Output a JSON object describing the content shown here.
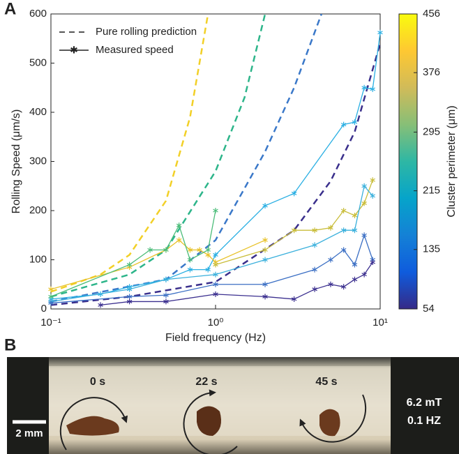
{
  "panel_labels": [
    "A",
    "B"
  ],
  "chart_data": {
    "type": "line",
    "x_label": "Field frequency (Hz)",
    "y_label": "Rolling Speed (μm/s)",
    "xscale": "log",
    "xlim": [
      0.1,
      10
    ],
    "xticks": [
      {
        "value": 0.1,
        "label": "10⁻¹"
      },
      {
        "value": 1,
        "label": "10⁰"
      },
      {
        "value": 10,
        "label": "10¹"
      }
    ],
    "ylim": [
      0,
      600
    ],
    "yticks": [
      0,
      100,
      200,
      300,
      400,
      500,
      600
    ],
    "legend": [
      "Pure rolling prediction",
      "Measured speed"
    ],
    "legend_position": "upper left",
    "series": [
      {
        "style": "dashed",
        "color": "#f2d027",
        "x": [
          0.1,
          0.2,
          0.3,
          0.5,
          0.7,
          0.9
        ],
        "values": [
          35,
          70,
          110,
          220,
          390,
          600
        ]
      },
      {
        "style": "dashed",
        "color": "#2db58a",
        "x": [
          0.1,
          0.3,
          0.5,
          1,
          1.5,
          2
        ],
        "values": [
          25,
          70,
          120,
          280,
          430,
          600
        ]
      },
      {
        "style": "dashed",
        "color": "#3a78c9",
        "x": [
          0.1,
          0.5,
          1,
          2,
          3,
          4.4
        ],
        "values": [
          15,
          60,
          140,
          320,
          450,
          600
        ]
      },
      {
        "style": "dashed",
        "color": "#3a2f8c",
        "x": [
          0.1,
          0.3,
          1,
          3,
          5,
          7,
          10
        ],
        "values": [
          8,
          25,
          55,
          160,
          260,
          360,
          540
        ]
      },
      {
        "style": "solid",
        "color": "#2aafe3",
        "x": [
          0.1,
          0.2,
          0.3,
          0.5,
          0.7,
          0.9,
          1,
          2,
          3,
          6,
          7,
          8,
          9,
          10
        ],
        "values": [
          20,
          30,
          45,
          60,
          80,
          80,
          110,
          210,
          235,
          375,
          380,
          450,
          447,
          562
        ]
      },
      {
        "style": "solid",
        "color": "#e8c22a",
        "x": [
          0.1,
          0.3,
          0.5,
          0.6,
          0.7,
          0.8,
          0.9,
          1,
          2
        ],
        "values": [
          40,
          85,
          120,
          140,
          120,
          120,
          110,
          95,
          140
        ]
      },
      {
        "style": "solid",
        "color": "#4cbd7a",
        "x": [
          0.1,
          0.3,
          0.4,
          0.5,
          0.6,
          0.7,
          0.9,
          1
        ],
        "values": [
          25,
          90,
          120,
          120,
          170,
          100,
          120,
          200
        ]
      },
      {
        "style": "solid",
        "color": "#c9bd3a",
        "x": [
          1,
          2,
          3,
          4,
          5,
          6,
          7,
          8,
          9
        ],
        "values": [
          90,
          120,
          160,
          160,
          165,
          200,
          190,
          215,
          262
        ]
      },
      {
        "style": "solid",
        "color": "#3ab0dc",
        "x": [
          0.1,
          0.3,
          0.5,
          1,
          2,
          4,
          6,
          7,
          8,
          9
        ],
        "values": [
          15,
          40,
          60,
          70,
          100,
          130,
          160,
          160,
          250,
          230
        ]
      },
      {
        "style": "solid",
        "color": "#3b6fc4",
        "x": [
          0.1,
          0.3,
          0.5,
          1,
          2,
          4,
          5,
          6,
          7,
          8,
          9
        ],
        "values": [
          12,
          25,
          28,
          50,
          50,
          80,
          100,
          120,
          90,
          150,
          100
        ]
      },
      {
        "style": "solid",
        "color": "#3b2f8f",
        "x": [
          0.2,
          0.3,
          0.5,
          1,
          2,
          3,
          4,
          5,
          6,
          7,
          8,
          9
        ],
        "values": [
          8,
          15,
          15,
          30,
          25,
          20,
          40,
          50,
          45,
          60,
          70,
          95
        ]
      }
    ],
    "colorbar": {
      "label": "Cluster perimeter (μm)",
      "clim": [
        54,
        456
      ],
      "ticks": [
        54,
        135,
        215,
        295,
        376,
        456
      ],
      "colormap": [
        "#352a87",
        "#0f5cdd",
        "#1481d6",
        "#06a4ca",
        "#2eb7a4",
        "#87bf77",
        "#d1bb59",
        "#fec832",
        "#f9fb0e"
      ]
    }
  },
  "photo": {
    "time_labels": [
      "0 s",
      "22 s",
      "45 s"
    ],
    "field": "6.2 mT",
    "frequency": "0.1 HZ",
    "scale_bar": "2 mm"
  }
}
